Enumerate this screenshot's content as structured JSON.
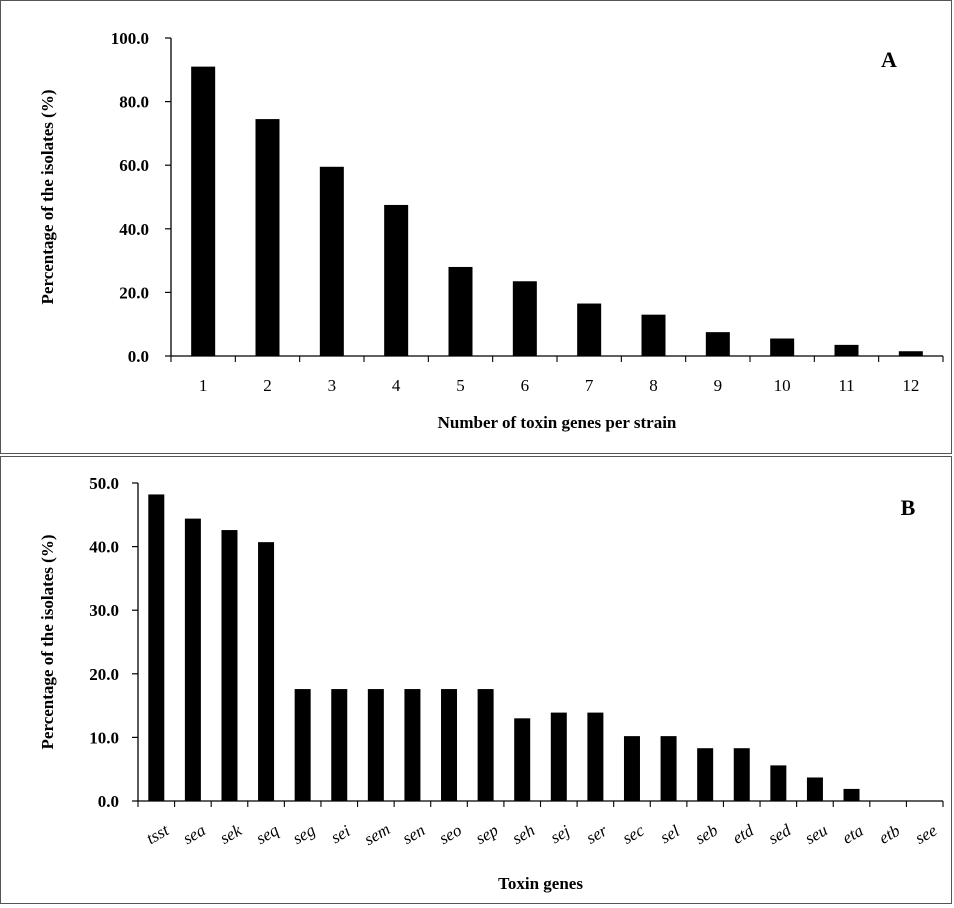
{
  "chart_data": [
    {
      "type": "bar",
      "panel_label": "A",
      "categories": [
        "1",
        "2",
        "3",
        "4",
        "5",
        "6",
        "7",
        "8",
        "9",
        "10",
        "11",
        "12"
      ],
      "values": [
        91.0,
        74.5,
        59.5,
        47.5,
        28.0,
        23.5,
        16.5,
        13.0,
        7.5,
        5.5,
        3.5,
        1.5
      ],
      "xlabel": "Number of toxin genes per strain",
      "ylabel": "Percentage of the isolates (%)",
      "ylim": [
        0,
        100
      ],
      "yticks": [
        "0.0",
        "20.0",
        "40.0",
        "60.0",
        "80.0",
        "100.0"
      ],
      "italic_categories": false,
      "grid": false,
      "bar_color": "#000000"
    },
    {
      "type": "bar",
      "panel_label": "B",
      "categories": [
        "tsst",
        "sea",
        "sek",
        "seq",
        "seg",
        "sei",
        "sem",
        "sen",
        "seo",
        "sep",
        "seh",
        "sej",
        "ser",
        "sec",
        "sel",
        "seb",
        "etd",
        "sed",
        "seu",
        "eta",
        "etb",
        "see"
      ],
      "values": [
        48.2,
        44.4,
        42.6,
        40.7,
        17.6,
        17.6,
        17.6,
        17.6,
        17.6,
        17.6,
        13.0,
        13.9,
        13.9,
        10.2,
        10.2,
        8.3,
        8.3,
        5.6,
        3.7,
        1.9,
        0.0,
        0.0
      ],
      "xlabel": "Toxin genes",
      "ylabel": "Percentage of the isolates (%)",
      "ylim": [
        0,
        50
      ],
      "yticks": [
        "0.0",
        "10.0",
        "20.0",
        "30.0",
        "40.0",
        "50.0"
      ],
      "italic_categories": true,
      "grid": false,
      "bar_color": "#000000"
    }
  ]
}
